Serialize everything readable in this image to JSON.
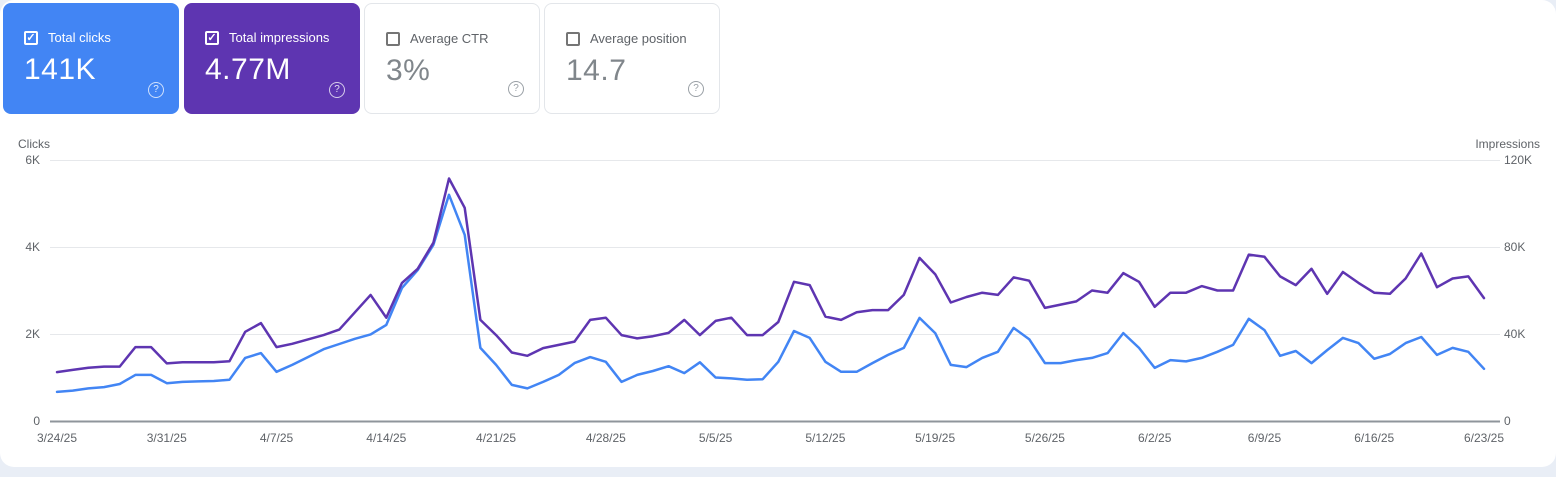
{
  "cards": [
    {
      "label": "Total clicks",
      "value": "141K",
      "checked": true
    },
    {
      "label": "Total impressions",
      "value": "4.77M",
      "checked": true
    },
    {
      "label": "Average CTR",
      "value": "3%",
      "checked": false
    },
    {
      "label": "Average position",
      "value": "14.7",
      "checked": false
    }
  ],
  "icons": {
    "check_glyph": "✓",
    "help_glyph": "?"
  },
  "colors": {
    "clicks_blue": "#4285f4",
    "impressions_purple": "#5e35b1",
    "grid_line": "#e6e8eb",
    "zero_line": "#8f959b",
    "axis_text": "#5f6368",
    "page_bg": "#e9eef6"
  },
  "chart_data": {
    "type": "line",
    "grid": true,
    "x_start": "3/24/25",
    "x_end": "6/23/25",
    "points_per_series": 92,
    "left_axis": {
      "title": "Clicks",
      "max": 6000,
      "ticks": [
        {
          "label": "0",
          "value": 0
        },
        {
          "label": "2K",
          "value": 2000
        },
        {
          "label": "4K",
          "value": 4000
        },
        {
          "label": "6K",
          "value": 6000
        }
      ]
    },
    "right_axis": {
      "title": "Impressions",
      "max": 120000,
      "ticks": [
        {
          "label": "0",
          "value": 0
        },
        {
          "label": "40K",
          "value": 40000
        },
        {
          "label": "80K",
          "value": 80000
        },
        {
          "label": "120K",
          "value": 120000
        }
      ]
    },
    "x_ticks": [
      {
        "label": "3/24/25",
        "day": 0
      },
      {
        "label": "3/31/25",
        "day": 7
      },
      {
        "label": "4/7/25",
        "day": 14
      },
      {
        "label": "4/14/25",
        "day": 21
      },
      {
        "label": "4/21/25",
        "day": 28
      },
      {
        "label": "4/28/25",
        "day": 35
      },
      {
        "label": "5/5/25",
        "day": 42
      },
      {
        "label": "5/12/25",
        "day": 49
      },
      {
        "label": "5/19/25",
        "day": 56
      },
      {
        "label": "5/26/25",
        "day": 63
      },
      {
        "label": "6/2/25",
        "day": 70
      },
      {
        "label": "6/9/25",
        "day": 77
      },
      {
        "label": "6/16/25",
        "day": 84
      },
      {
        "label": "6/23/25",
        "day": 91
      }
    ],
    "dates": [
      "3/24/25",
      "3/25/25",
      "3/26/25",
      "3/27/25",
      "3/28/25",
      "3/29/25",
      "3/30/25",
      "3/31/25",
      "4/1/25",
      "4/2/25",
      "4/3/25",
      "4/4/25",
      "4/5/25",
      "4/6/25",
      "4/7/25",
      "4/8/25",
      "4/9/25",
      "4/10/25",
      "4/11/25",
      "4/12/25",
      "4/13/25",
      "4/14/25",
      "4/15/25",
      "4/16/25",
      "4/17/25",
      "4/18/25",
      "4/19/25",
      "4/20/25",
      "4/21/25",
      "4/22/25",
      "4/23/25",
      "4/24/25",
      "4/25/25",
      "4/26/25",
      "4/27/25",
      "4/28/25",
      "4/29/25",
      "4/30/25",
      "5/1/25",
      "5/2/25",
      "5/3/25",
      "5/4/25",
      "5/5/25",
      "5/6/25",
      "5/7/25",
      "5/8/25",
      "5/9/25",
      "5/10/25",
      "5/11/25",
      "5/12/25",
      "5/13/25",
      "5/14/25",
      "5/15/25",
      "5/16/25",
      "5/17/25",
      "5/18/25",
      "5/19/25",
      "5/20/25",
      "5/21/25",
      "5/22/25",
      "5/23/25",
      "5/24/25",
      "5/25/25",
      "5/26/25",
      "5/27/25",
      "5/28/25",
      "5/29/25",
      "5/30/25",
      "5/31/25",
      "6/1/25",
      "6/2/25",
      "6/3/25",
      "6/4/25",
      "6/5/25",
      "6/6/25",
      "6/7/25",
      "6/8/25",
      "6/9/25",
      "6/10/25",
      "6/11/25",
      "6/12/25",
      "6/13/25",
      "6/14/25",
      "6/15/25",
      "6/16/25",
      "6/17/25",
      "6/18/25",
      "6/19/25",
      "6/20/25",
      "6/21/25",
      "6/22/25",
      "6/23/25"
    ],
    "series": [
      {
        "name": "Clicks",
        "axis": "left",
        "color": "#4285f4",
        "values": [
          670,
          700,
          750,
          780,
          850,
          1060,
          1060,
          870,
          900,
          910,
          920,
          950,
          1450,
          1560,
          1130,
          1290,
          1470,
          1650,
          1770,
          1890,
          1990,
          2210,
          3060,
          3470,
          4050,
          5200,
          4280,
          1680,
          1290,
          830,
          750,
          900,
          1060,
          1330,
          1470,
          1360,
          900,
          1060,
          1150,
          1260,
          1100,
          1350,
          1000,
          980,
          950,
          960,
          1360,
          2070,
          1910,
          1360,
          1130,
          1130,
          1330,
          1520,
          1680,
          2370,
          2020,
          1290,
          1240,
          1450,
          1590,
          2140,
          1880,
          1330,
          1330,
          1400,
          1450,
          1560,
          2020,
          1680,
          1220,
          1400,
          1370,
          1450,
          1590,
          1750,
          2350,
          2090,
          1500,
          1610,
          1330,
          1630,
          1910,
          1790,
          1430,
          1540,
          1790,
          1930,
          1520,
          1680,
          1590,
          1200
        ]
      },
      {
        "name": "Impressions",
        "axis": "right",
        "color": "#5e35b1",
        "values": [
          22500,
          23500,
          24500,
          25000,
          25000,
          34000,
          34000,
          26500,
          27000,
          27000,
          27000,
          27500,
          41000,
          45000,
          34000,
          35500,
          37500,
          39500,
          42000,
          50000,
          58000,
          47500,
          63500,
          70000,
          82000,
          111500,
          98000,
          46500,
          39500,
          31500,
          30000,
          33500,
          35000,
          36500,
          46500,
          47500,
          39500,
          38000,
          39000,
          40500,
          46500,
          39500,
          46000,
          47500,
          39500,
          39500,
          45500,
          64000,
          62500,
          48000,
          46500,
          50000,
          51000,
          51000,
          58000,
          75000,
          67500,
          54500,
          57000,
          59000,
          58000,
          66000,
          64500,
          52000,
          53500,
          55000,
          60000,
          59000,
          68000,
          64000,
          52500,
          59000,
          59000,
          62000,
          60000,
          60000,
          76500,
          75500,
          66500,
          62500,
          70000,
          58500,
          68500,
          63500,
          59000,
          58500,
          65500,
          77000,
          61500,
          65500,
          66500,
          56500
        ]
      }
    ]
  }
}
